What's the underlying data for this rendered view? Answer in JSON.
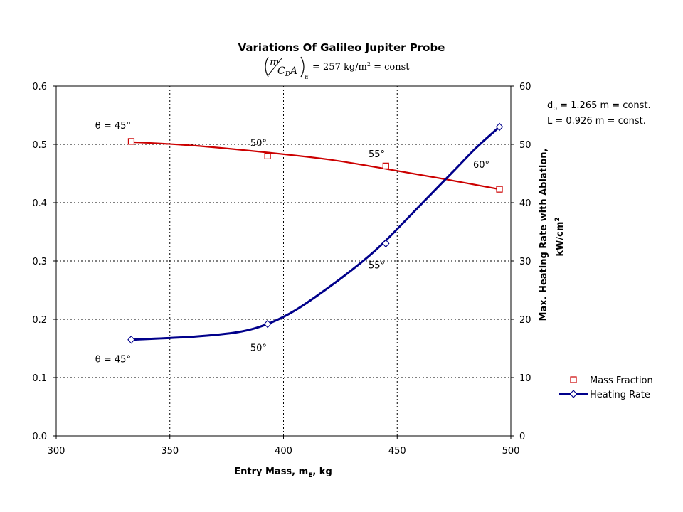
{
  "chart_data": {
    "type": "line",
    "title": "Variations Of Galileo Jupiter Probe",
    "subtitle": {
      "numerator": "m",
      "denominator": "C",
      "denominator_sub": "D",
      "denominator_tail": "A",
      "subscript": "E",
      "rhs": "= 257 kg/m",
      "rhs_sup": "2",
      "rhs_tail": " = const"
    },
    "xlabel": {
      "main": "Entry Mass, m",
      "sub": "E",
      "tail": ", kg"
    },
    "ylabel_right": {
      "line1": "Max. Heating Rate with Ablation,",
      "line2": "kW/cm",
      "line2_sup": "2"
    },
    "xlim": [
      300,
      500
    ],
    "ylim_left": [
      0.0,
      0.6
    ],
    "ylim_right": [
      0,
      60
    ],
    "x_ticks": [
      "300",
      "350",
      "400",
      "450",
      "500"
    ],
    "y_left_ticks": [
      "0.0",
      "0.1",
      "0.2",
      "0.3",
      "0.4",
      "0.5",
      "0.6"
    ],
    "y_right_ticks": [
      "0",
      "10",
      "20",
      "30",
      "40",
      "50",
      "60"
    ],
    "grid": true,
    "legend_position": "right",
    "series": [
      {
        "name": "Mass Fraction",
        "axis": "left",
        "color": "#cc0000",
        "marker": "square",
        "x": [
          333,
          393,
          445,
          495
        ],
        "y": [
          0.505,
          0.48,
          0.463,
          0.423
        ],
        "fit": [
          [
            333,
            0.504
          ],
          [
            360,
            0.498
          ],
          [
            393,
            0.486
          ],
          [
            420,
            0.474
          ],
          [
            445,
            0.458
          ],
          [
            470,
            0.441
          ],
          [
            495,
            0.423
          ]
        ]
      },
      {
        "name": "Heating Rate",
        "axis": "right",
        "color": "#00008b",
        "marker": "diamond",
        "x": [
          333,
          393,
          445,
          495
        ],
        "y": [
          16.5,
          19.2,
          33.0,
          53.0
        ],
        "fit": [
          [
            333,
            16.5
          ],
          [
            360,
            17.0
          ],
          [
            380,
            17.8
          ],
          [
            393,
            19.2
          ],
          [
            405,
            21.5
          ],
          [
            420,
            25.5
          ],
          [
            435,
            30.0
          ],
          [
            445,
            33.5
          ],
          [
            460,
            39.5
          ],
          [
            475,
            45.5
          ],
          [
            485,
            49.5
          ],
          [
            495,
            53.0
          ]
        ]
      }
    ],
    "annotations": [
      {
        "id": "mf_45",
        "text": "θ = 45°",
        "x": 325,
        "y": 0.527,
        "axis": "left"
      },
      {
        "id": "mf_50",
        "text": "50°",
        "x": 389,
        "y": 0.497,
        "axis": "left"
      },
      {
        "id": "mf_55",
        "text": "55°",
        "x": 441,
        "y": 0.478,
        "axis": "left"
      },
      {
        "id": "mf_60",
        "text": "60°",
        "x": 487,
        "y": 0.46,
        "axis": "left"
      },
      {
        "id": "hr_45",
        "text": "θ = 45°",
        "x": 325,
        "y": 12.6,
        "axis": "right"
      },
      {
        "id": "hr_50",
        "text": "50°",
        "x": 389,
        "y": 14.6,
        "axis": "right"
      },
      {
        "id": "hr_55",
        "text": "55°",
        "x": 441,
        "y": 28.7,
        "axis": "right"
      }
    ],
    "notes": [
      {
        "main": "d",
        "sub": "b",
        "tail": " = 1.265 m = const."
      },
      {
        "main": "L = 0.926 m = const."
      }
    ]
  }
}
